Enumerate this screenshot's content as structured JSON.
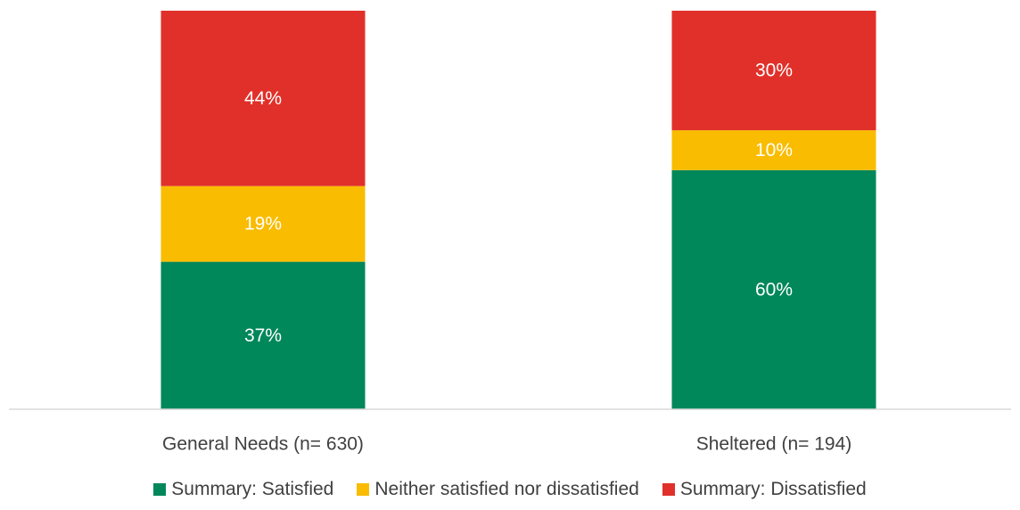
{
  "chart_data": {
    "type": "bar",
    "stacked": true,
    "categories": [
      "General Needs (n= 630)",
      "Sheltered (n= 194)"
    ],
    "series": [
      {
        "name": "Summary: Satisfied",
        "values": [
          37,
          60
        ],
        "labels": [
          "37%",
          "60%"
        ],
        "color": "#00875A"
      },
      {
        "name": "Neither satisfied nor dissatisfied",
        "values": [
          19,
          10
        ],
        "labels": [
          "19%",
          "10%"
        ],
        "color": "#F9BC00"
      },
      {
        "name": "Summary: Dissatisfied",
        "values": [
          44,
          30
        ],
        "labels": [
          "44%",
          "30%"
        ],
        "color": "#E1302A"
      }
    ],
    "ylim": [
      0,
      100
    ],
    "grid": false,
    "legend_position": "bottom",
    "axis_color": "#D9D9D9"
  }
}
